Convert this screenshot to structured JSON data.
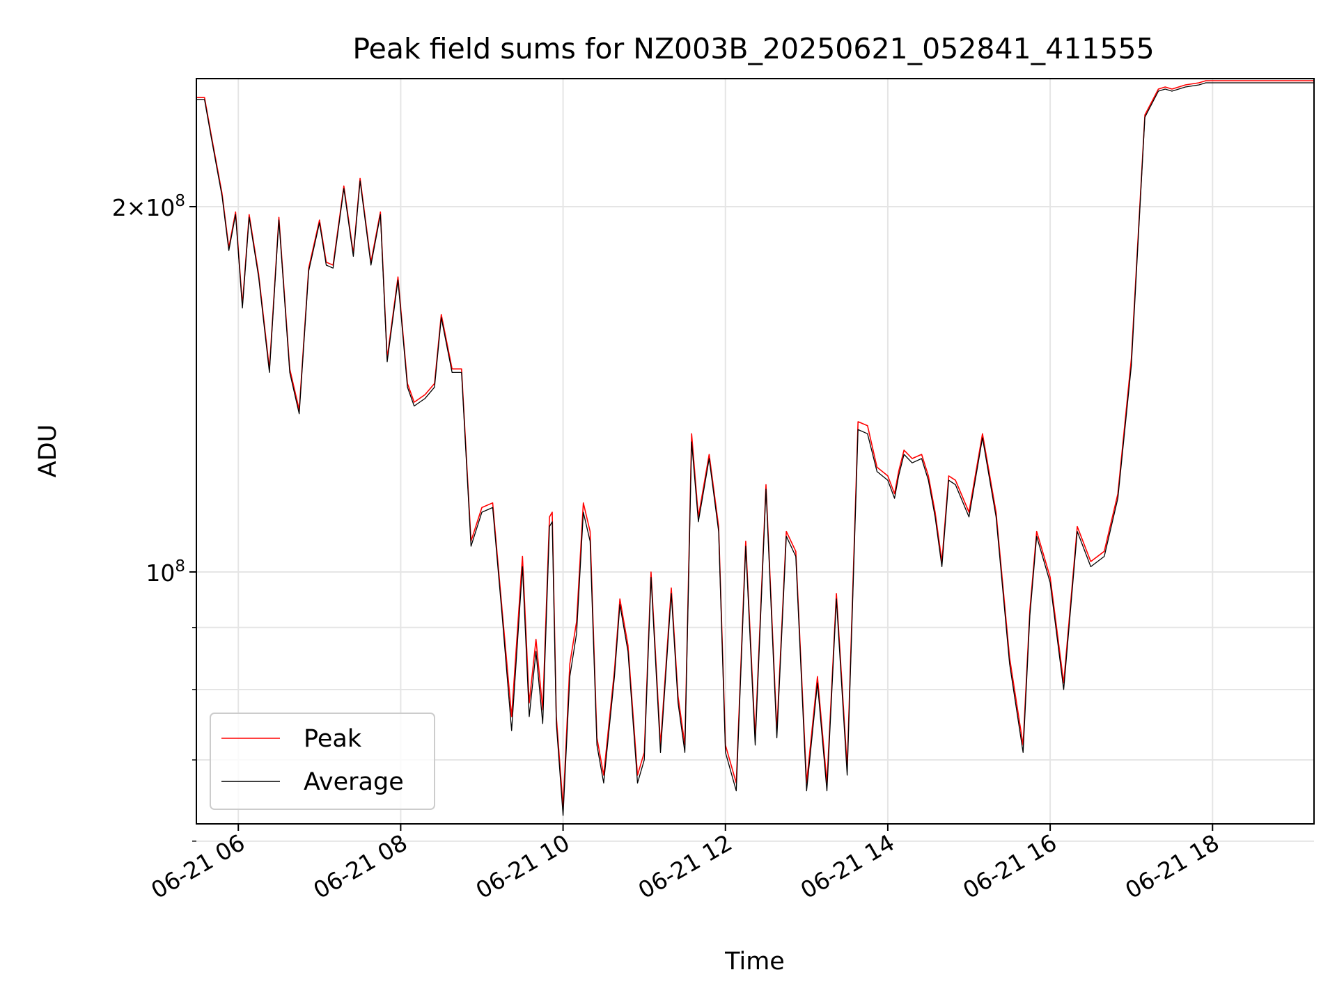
{
  "chart_data": {
    "type": "line",
    "title": "Peak field sums for NZ003B_20250621_052841_411555",
    "xlabel": "Time",
    "ylabel": "ADU",
    "yscale": "log",
    "ylim": [
      62000000,
      255000000
    ],
    "xlim": [
      "06-21 05:29",
      "06-21 19:15"
    ],
    "x_tick_labels": [
      "06-21 06",
      "06-21 08",
      "06-21 10",
      "06-21 12",
      "06-21 14",
      "06-21 16",
      "06-21 18"
    ],
    "x_tick_values": [
      "06-21 06:00",
      "06-21 08:00",
      "06-21 10:00",
      "06-21 12:00",
      "06-21 14:00",
      "06-21 16:00",
      "06-21 18:00"
    ],
    "y_major_ticks": [
      {
        "value": 100000000,
        "mantissa": "",
        "base": "10",
        "exp": "8"
      },
      {
        "value": 200000000,
        "mantissa": "2×",
        "base": "10",
        "exp": "8"
      }
    ],
    "y_minor_ticks": [
      60000000,
      70000000,
      80000000,
      90000000
    ],
    "grid": true,
    "legend_position": "lower-left",
    "series": [
      {
        "name": "Peak",
        "color": "#ff0000",
        "x": [
          "05:29",
          "05:35",
          "05:40",
          "05:48",
          "05:53",
          "05:58",
          "06:03",
          "06:08",
          "06:15",
          "06:23",
          "06:30",
          "06:38",
          "06:45",
          "06:52",
          "07:00",
          "07:05",
          "07:10",
          "07:18",
          "07:25",
          "07:30",
          "07:38",
          "07:45",
          "07:50",
          "07:58",
          "08:05",
          "08:10",
          "08:18",
          "08:25",
          "08:30",
          "08:38",
          "08:45",
          "08:52",
          "09:00",
          "09:08",
          "09:15",
          "09:22",
          "09:30",
          "09:35",
          "09:40",
          "09:45",
          "09:50",
          "09:52",
          "09:55",
          "10:00",
          "10:05",
          "10:10",
          "10:15",
          "10:20",
          "10:25",
          "10:30",
          "10:38",
          "10:42",
          "10:48",
          "10:55",
          "11:00",
          "11:05",
          "11:12",
          "11:20",
          "11:25",
          "11:30",
          "11:35",
          "11:40",
          "11:48",
          "11:55",
          "12:00",
          "12:08",
          "12:15",
          "12:22",
          "12:30",
          "12:38",
          "12:45",
          "12:52",
          "13:00",
          "13:08",
          "13:15",
          "13:22",
          "13:30",
          "13:38",
          "13:45",
          "13:52",
          "14:00",
          "14:05",
          "14:08",
          "14:12",
          "14:18",
          "14:25",
          "14:30",
          "14:35",
          "14:40",
          "14:45",
          "14:50",
          "15:00",
          "15:10",
          "15:20",
          "15:30",
          "15:40",
          "15:45",
          "15:50",
          "16:00",
          "16:10",
          "16:20",
          "16:30",
          "16:40",
          "16:50",
          "17:00",
          "17:10",
          "17:20",
          "17:25",
          "17:30",
          "17:40",
          "17:50",
          "17:55",
          "18:00",
          "18:05",
          "18:10",
          "18:15",
          "18:20",
          "18:25",
          "18:30",
          "18:35",
          "18:40",
          "18:45",
          "18:50",
          "18:55",
          "19:00",
          "19:15"
        ],
        "values": [
          246000000,
          246000000,
          229000000,
          205000000,
          185000000,
          198000000,
          166000000,
          197000000,
          176000000,
          147000000,
          196000000,
          147000000,
          136000000,
          178000000,
          195000000,
          180000000,
          179000000,
          208000000,
          183000000,
          211000000,
          180000000,
          198000000,
          150000000,
          175000000,
          143000000,
          138000000,
          140000000,
          143000000,
          163000000,
          147000000,
          147000000,
          106000000,
          113000000,
          114000000,
          93000000,
          76000000,
          103000000,
          78000000,
          88000000,
          77000000,
          111000000,
          112000000,
          76000000,
          64000000,
          84000000,
          91000000,
          114000000,
          108000000,
          73000000,
          68000000,
          83000000,
          95000000,
          87000000,
          68000000,
          71000000,
          100000000,
          72000000,
          97000000,
          79000000,
          72000000,
          130000000,
          111000000,
          125000000,
          109000000,
          72000000,
          67000000,
          106000000,
          73000000,
          118000000,
          74000000,
          108000000,
          104000000,
          67000000,
          82000000,
          67000000,
          96000000,
          69000000,
          133000000,
          132000000,
          122000000,
          120000000,
          116000000,
          121000000,
          126000000,
          124000000,
          125000000,
          120000000,
          112000000,
          102000000,
          120000000,
          119000000,
          112000000,
          130000000,
          112000000,
          85000000,
          72000000,
          93000000,
          108000000,
          99000000,
          81000000,
          109000000,
          102000000,
          104000000,
          116000000,
          150000000,
          238000000,
          250000000,
          251000000,
          250000000,
          252000000,
          253000000,
          254000000,
          254000000,
          254000000,
          254000000,
          254000000,
          254000000,
          254000000,
          254000000,
          254000000,
          254000000,
          254000000,
          254000000,
          254000000,
          254000000,
          254000000
        ]
      },
      {
        "name": "Average",
        "color": "#000000",
        "x": [
          "05:29",
          "05:35",
          "05:40",
          "05:48",
          "05:53",
          "05:58",
          "06:03",
          "06:08",
          "06:15",
          "06:23",
          "06:30",
          "06:38",
          "06:45",
          "06:52",
          "07:00",
          "07:05",
          "07:10",
          "07:18",
          "07:25",
          "07:30",
          "07:38",
          "07:45",
          "07:50",
          "07:58",
          "08:05",
          "08:10",
          "08:18",
          "08:25",
          "08:30",
          "08:38",
          "08:45",
          "08:52",
          "09:00",
          "09:08",
          "09:15",
          "09:22",
          "09:30",
          "09:35",
          "09:40",
          "09:45",
          "09:50",
          "09:52",
          "09:55",
          "10:00",
          "10:05",
          "10:10",
          "10:15",
          "10:20",
          "10:25",
          "10:30",
          "10:38",
          "10:42",
          "10:48",
          "10:55",
          "11:00",
          "11:05",
          "11:12",
          "11:20",
          "11:25",
          "11:30",
          "11:35",
          "11:40",
          "11:48",
          "11:55",
          "12:00",
          "12:08",
          "12:15",
          "12:22",
          "12:30",
          "12:38",
          "12:45",
          "12:52",
          "13:00",
          "13:08",
          "13:15",
          "13:22",
          "13:30",
          "13:38",
          "13:45",
          "13:52",
          "14:00",
          "14:05",
          "14:08",
          "14:12",
          "14:18",
          "14:25",
          "14:30",
          "14:35",
          "14:40",
          "14:45",
          "14:50",
          "15:00",
          "15:10",
          "15:20",
          "15:30",
          "15:40",
          "15:45",
          "15:50",
          "16:00",
          "16:10",
          "16:20",
          "16:30",
          "16:40",
          "16:50",
          "17:00",
          "17:10",
          "17:20",
          "17:25",
          "17:30",
          "17:40",
          "17:50",
          "17:55",
          "18:00",
          "18:05",
          "18:10",
          "18:15",
          "18:20",
          "18:25",
          "18:30",
          "18:35",
          "18:40",
          "18:45",
          "18:50",
          "18:55",
          "19:00",
          "19:15"
        ],
        "values": [
          245000000,
          245000000,
          228000000,
          204000000,
          184000000,
          197000000,
          165000000,
          196000000,
          175000000,
          146000000,
          195000000,
          146000000,
          135000000,
          177000000,
          194000000,
          179000000,
          178000000,
          207000000,
          182000000,
          210000000,
          179000000,
          197000000,
          149000000,
          174000000,
          142000000,
          137000000,
          139000000,
          142000000,
          162000000,
          146000000,
          146000000,
          105000000,
          112000000,
          113000000,
          92000000,
          74000000,
          101000000,
          76000000,
          86000000,
          75000000,
          109000000,
          110000000,
          75000000,
          63000000,
          82000000,
          89000000,
          112000000,
          106000000,
          72000000,
          67000000,
          82000000,
          94000000,
          86000000,
          67000000,
          70000000,
          99000000,
          71000000,
          96000000,
          78000000,
          71000000,
          128000000,
          110000000,
          124000000,
          108000000,
          71000000,
          66000000,
          105000000,
          72000000,
          117000000,
          73000000,
          107000000,
          103000000,
          66000000,
          81000000,
          66000000,
          95000000,
          68000000,
          131000000,
          130000000,
          121000000,
          119000000,
          115000000,
          120000000,
          125000000,
          123000000,
          124000000,
          119000000,
          111000000,
          101000000,
          119000000,
          118000000,
          111000000,
          129000000,
          111000000,
          84000000,
          71000000,
          92000000,
          107000000,
          98000000,
          80000000,
          108000000,
          101000000,
          103000000,
          115000000,
          148000000,
          237000000,
          249000000,
          250000000,
          249000000,
          251000000,
          252000000,
          253000000,
          253000000,
          253000000,
          253000000,
          253000000,
          253000000,
          253000000,
          253000000,
          253000000,
          253000000,
          253000000,
          253000000,
          253000000,
          253000000,
          253000000
        ]
      }
    ]
  }
}
